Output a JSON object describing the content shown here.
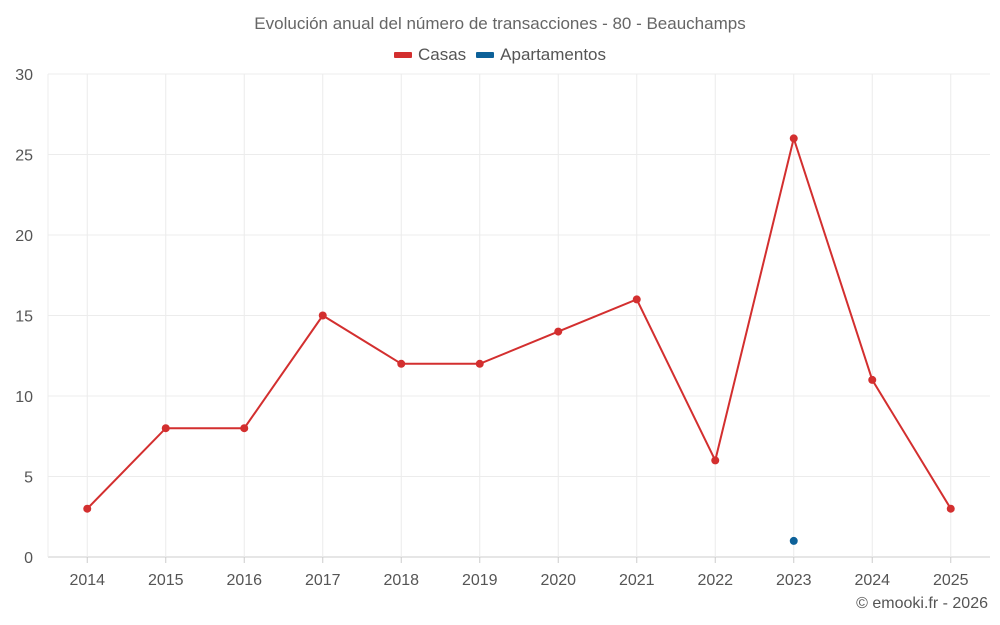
{
  "chart_data": {
    "type": "line",
    "title": "Evolución anual del número de transacciones - 80 - Beauchamps",
    "xlabel": "",
    "ylabel": "",
    "x": [
      "2014",
      "2015",
      "2016",
      "2017",
      "2018",
      "2019",
      "2020",
      "2021",
      "2022",
      "2023",
      "2024",
      "2025"
    ],
    "ylim": [
      0,
      30
    ],
    "yticks": [
      0,
      5,
      10,
      15,
      20,
      25,
      30
    ],
    "grid": true,
    "legend_position": "top-center",
    "series": [
      {
        "name": "Casas",
        "color": "#d32f2f",
        "values": [
          3,
          8,
          8,
          15,
          12,
          12,
          14,
          16,
          6,
          26,
          11,
          3
        ]
      },
      {
        "name": "Apartamentos",
        "color": "#0d6199",
        "values": [
          null,
          null,
          null,
          null,
          null,
          null,
          null,
          null,
          null,
          1,
          null,
          null
        ]
      }
    ]
  },
  "credit": "© emooki.fr - 2026"
}
